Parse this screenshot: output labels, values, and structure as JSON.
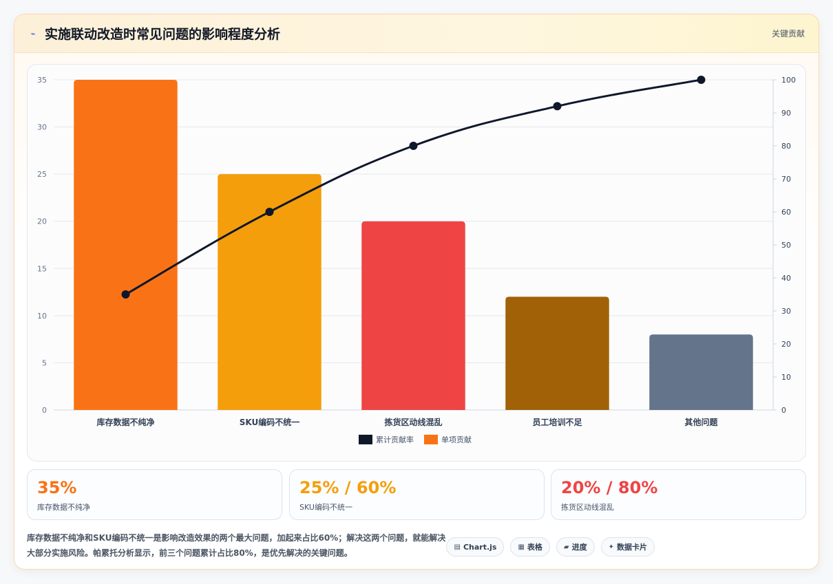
{
  "header": {
    "icon": "lightning-icon",
    "title": "实施联动改造时常见问题的影响程度分析",
    "tag": "关键贡献"
  },
  "chart_data": {
    "type": "bar",
    "categories": [
      "库存数据不纯净",
      "SKU编码不统一",
      "拣货区动线混乱",
      "员工培训不足",
      "其他问题"
    ],
    "series": [
      {
        "name": "单项贡献",
        "type": "bar",
        "axis": "left",
        "values": [
          35,
          25,
          20,
          12,
          8
        ],
        "colors": [
          "#f97316",
          "#f59e0b",
          "#ef4444",
          "#a16207",
          "#64748b"
        ]
      },
      {
        "name": "累计贡献率",
        "type": "line",
        "axis": "right",
        "values": [
          35,
          60,
          80,
          92,
          100
        ],
        "color": "#0f172a"
      }
    ],
    "y_left": {
      "ylim": [
        0,
        35
      ],
      "ticks": [
        0,
        5,
        10,
        15,
        20,
        25,
        30,
        35
      ]
    },
    "y_right": {
      "ylim": [
        0,
        100
      ],
      "ticks": [
        0,
        10,
        20,
        30,
        40,
        50,
        60,
        70,
        80,
        90,
        100
      ]
    },
    "legend": {
      "placement": "bottom",
      "items": [
        "累计贡献率",
        "单项贡献"
      ]
    },
    "grid": true
  },
  "stats": [
    {
      "value": "35%",
      "label": "库存数据不纯净",
      "color": "#f97316"
    },
    {
      "value": "25% / 60%",
      "label": "SKU编码不统一",
      "color": "#f59e0b"
    },
    {
      "value": "20% / 80%",
      "label": "拣货区动线混乱",
      "color": "#ef4444"
    }
  ],
  "summary": "库存数据不纯净和SKU编码不统一是影响改造效果的两个最大问题，加起来占比60%；解决这两个问题，就能解决大部分实施风险。帕累托分析显示，前三个问题累计占比80%，是优先解决的关键问题。",
  "chips": [
    {
      "icon": "chart-icon",
      "glyph": "▤",
      "label": "Chart.js"
    },
    {
      "icon": "table-icon",
      "glyph": "▦",
      "label": "表格"
    },
    {
      "icon": "progress-icon",
      "glyph": "▰",
      "label": "进度"
    },
    {
      "icon": "sparkle-icon",
      "glyph": "✦",
      "label": "数据卡片"
    }
  ]
}
